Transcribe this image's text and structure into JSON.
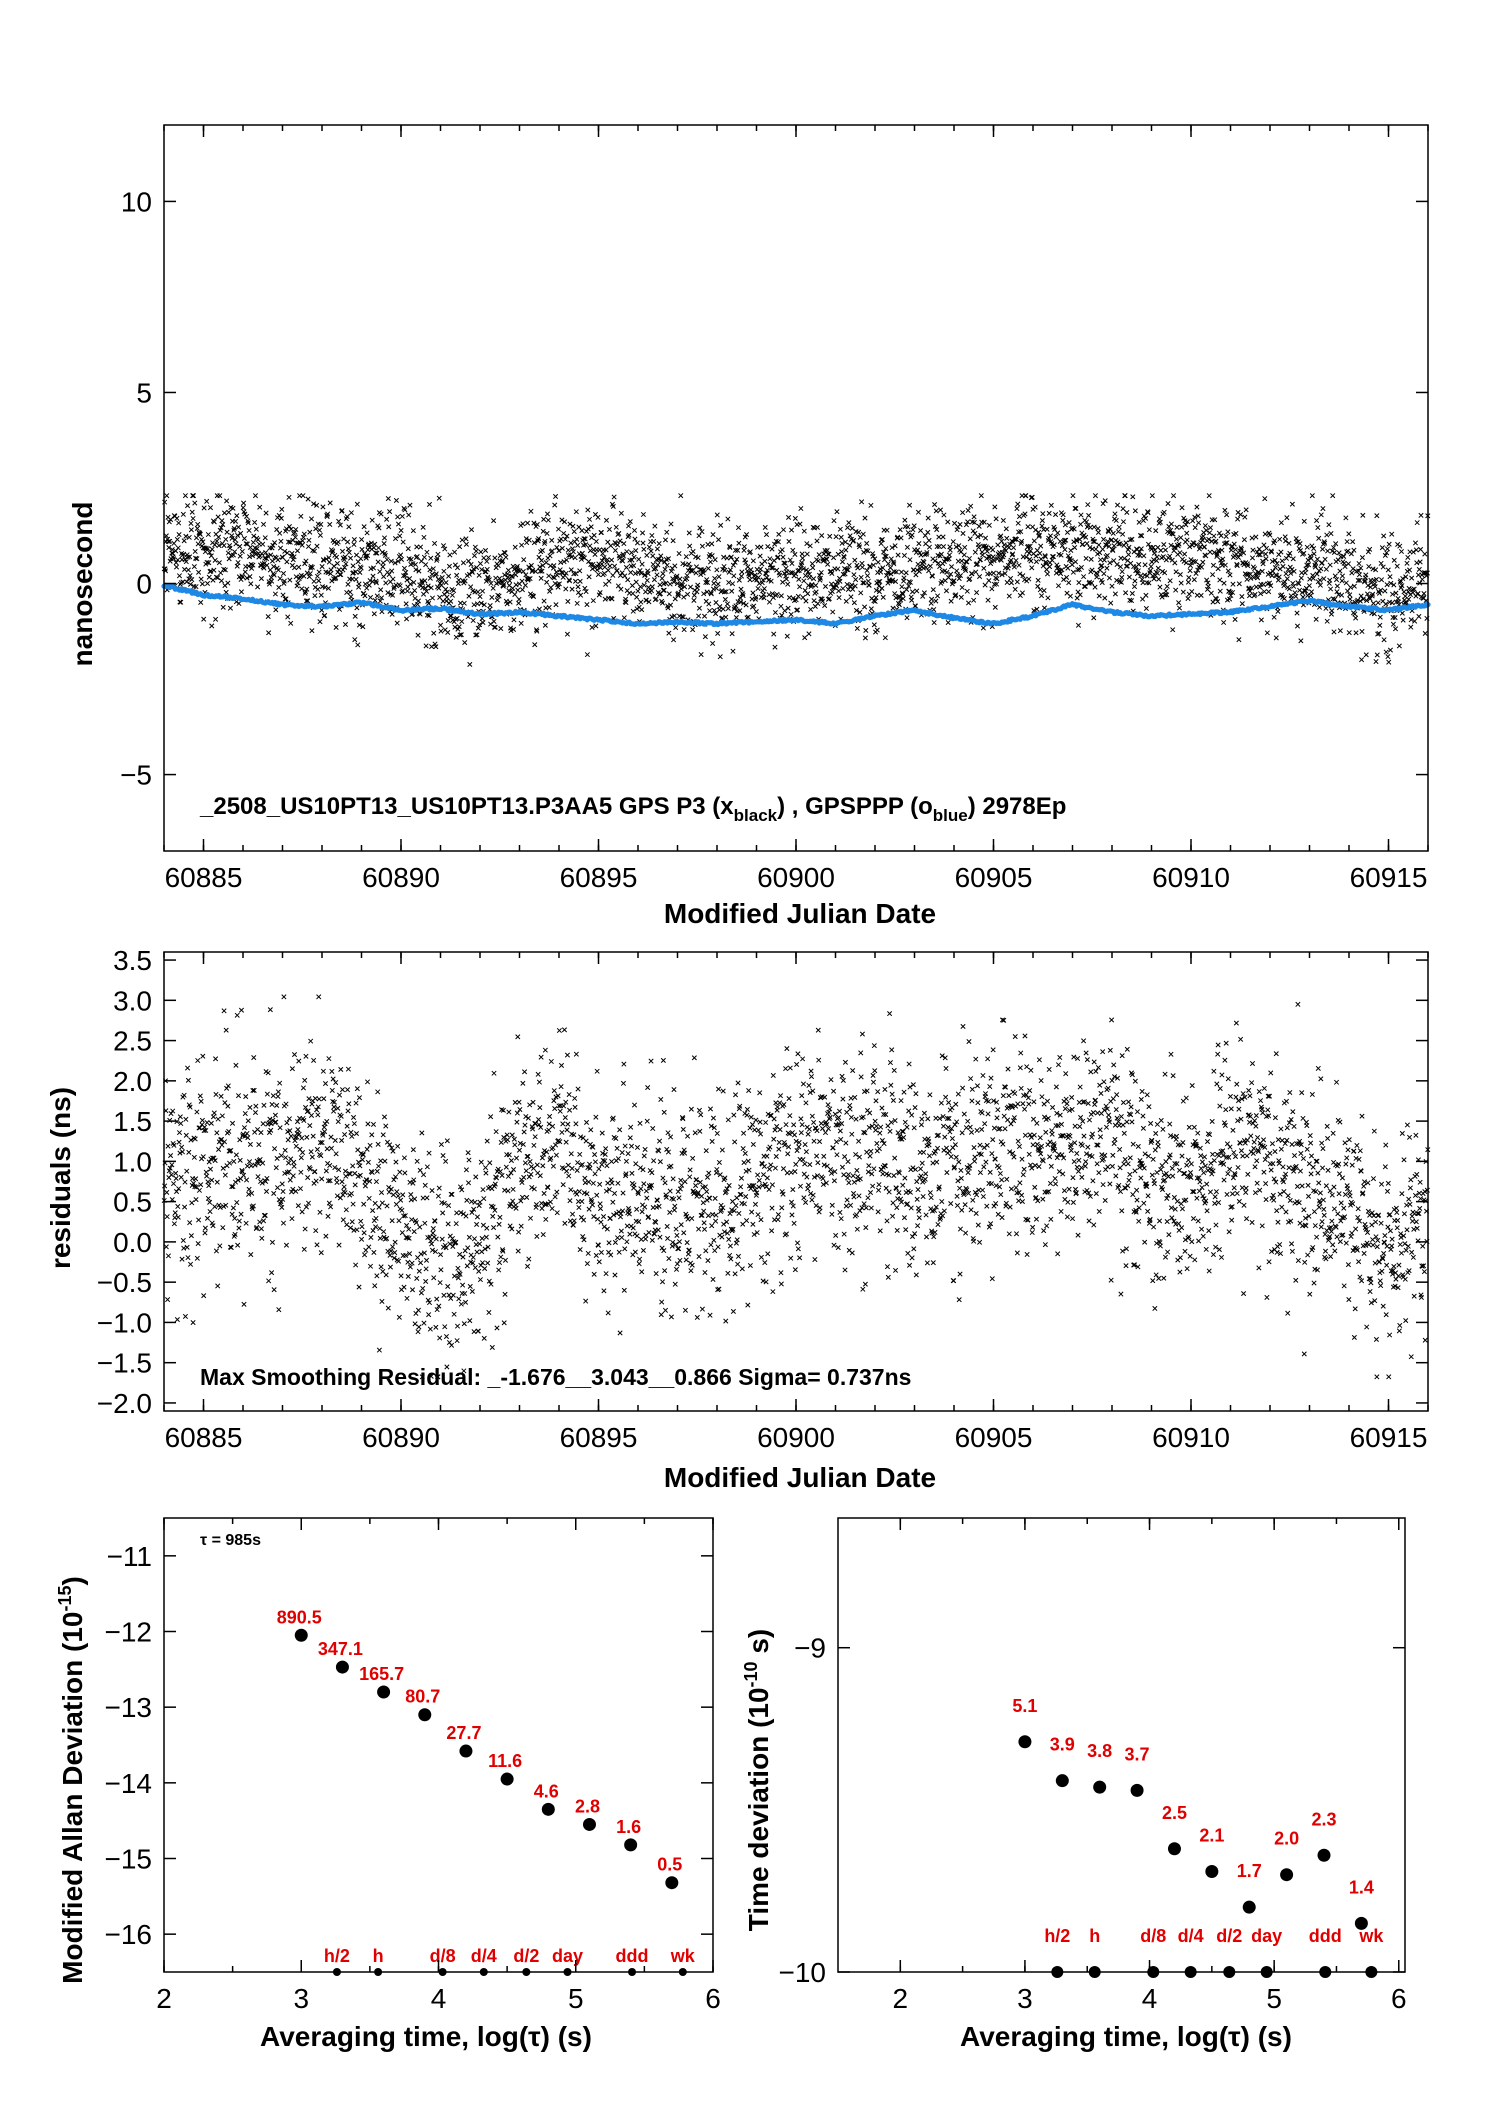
{
  "colors": {
    "black_series": "#000000",
    "blue_series": "#1e88e5",
    "red_labels": "#e00000"
  },
  "chart_data": [
    {
      "type": "scatter",
      "panel": "time_series",
      "xlabel": "Modified Julian Date",
      "ylabel": "nanosecond",
      "xlim": [
        60884,
        60916
      ],
      "ylim": [
        -7,
        12
      ],
      "xticks": [
        60885,
        60890,
        60895,
        60900,
        60905,
        60910,
        60915
      ],
      "yticks": [
        -5,
        0,
        5,
        10
      ],
      "annotation": {
        "prefix": "_2508_US10PT13_US10PT13.P3AA5     GPS P3 (x",
        "sub1": "black",
        "mid": ") ,  GPSPPP (o",
        "sub2": "blue",
        "suffix": ")  2978Ep"
      },
      "series": [
        {
          "name": "GPS P3",
          "marker": "x",
          "color": "#000000",
          "trend": [
            [
              60884,
              1.0
            ],
            [
              60887,
              0.7
            ],
            [
              60890,
              0.3
            ],
            [
              60892,
              -0.2
            ],
            [
              60894,
              0.7
            ],
            [
              60897,
              0.0
            ],
            [
              60900,
              0.2
            ],
            [
              60903,
              0.5
            ],
            [
              60905,
              0.7
            ],
            [
              60908,
              0.9
            ],
            [
              60911,
              0.6
            ],
            [
              60913,
              0.3
            ],
            [
              60915,
              -0.3
            ],
            [
              60916,
              0.0
            ]
          ],
          "spread_ns": 0.75,
          "count": 2978
        },
        {
          "name": "GPSPPP",
          "marker": "o",
          "color": "#1e88e5",
          "points": [
            [
              60884,
              -0.05
            ],
            [
              60885,
              -0.3
            ],
            [
              60886,
              -0.4
            ],
            [
              60887,
              -0.55
            ],
            [
              60888,
              -0.6
            ],
            [
              60889,
              -0.5
            ],
            [
              60890,
              -0.7
            ],
            [
              60891,
              -0.65
            ],
            [
              60892,
              -0.8
            ],
            [
              60893,
              -0.75
            ],
            [
              60894,
              -0.85
            ],
            [
              60895,
              -0.95
            ],
            [
              60896,
              -1.05
            ],
            [
              60897,
              -1.0
            ],
            [
              60898,
              -1.05
            ],
            [
              60899,
              -1.0
            ],
            [
              60900,
              -0.95
            ],
            [
              60901,
              -1.05
            ],
            [
              60902,
              -0.85
            ],
            [
              60903,
              -0.7
            ],
            [
              60904,
              -0.9
            ],
            [
              60905,
              -1.05
            ],
            [
              60906,
              -0.85
            ],
            [
              60907,
              -0.55
            ],
            [
              60908,
              -0.75
            ],
            [
              60909,
              -0.85
            ],
            [
              60910,
              -0.8
            ],
            [
              60911,
              -0.75
            ],
            [
              60912,
              -0.6
            ],
            [
              60913,
              -0.45
            ],
            [
              60914,
              -0.6
            ],
            [
              60915,
              -0.7
            ],
            [
              60916,
              -0.55
            ]
          ]
        }
      ]
    },
    {
      "type": "scatter",
      "panel": "residuals",
      "xlabel": "Modified Julian Date",
      "ylabel": "residuals (ns)",
      "xlim": [
        60884,
        60916
      ],
      "ylim": [
        -2.1,
        3.6
      ],
      "xticks": [
        60885,
        60890,
        60895,
        60900,
        60905,
        60910,
        60915
      ],
      "yticks": [
        -2.0,
        -1.5,
        -1.0,
        -0.5,
        0.0,
        0.5,
        1.0,
        1.5,
        2.0,
        2.5,
        3.0,
        3.5
      ],
      "annotation": "Max Smoothing Residual: _-1.676__3.043__0.866  Sigma= 0.737ns",
      "series": [
        {
          "name": "residuals",
          "marker": "x",
          "color": "#000000",
          "trend": [
            [
              60884,
              0.9
            ],
            [
              60886,
              0.9
            ],
            [
              60888,
              1.3
            ],
            [
              60889,
              0.8
            ],
            [
              60890,
              0.2
            ],
            [
              60891,
              -0.2
            ],
            [
              60892,
              0.1
            ],
            [
              60893,
              1.1
            ],
            [
              60894,
              1.2
            ],
            [
              60895,
              0.6
            ],
            [
              60897,
              0.4
            ],
            [
              60899,
              0.8
            ],
            [
              60900,
              1.1
            ],
            [
              60902,
              1.0
            ],
            [
              60903,
              0.8
            ],
            [
              60905,
              1.2
            ],
            [
              60906,
              1.1
            ],
            [
              60908,
              1.3
            ],
            [
              60909,
              0.9
            ],
            [
              60910,
              0.8
            ],
            [
              60911,
              1.1
            ],
            [
              60912,
              1.1
            ],
            [
              60913,
              0.7
            ],
            [
              60914,
              0.3
            ],
            [
              60915,
              0.0
            ],
            [
              60916,
              0.4
            ]
          ],
          "spread_ns": 0.65,
          "count": 2978,
          "extremes": {
            "min": -1.676,
            "max": 3.043,
            "mean": 0.866,
            "sigma": 0.737
          }
        }
      ]
    },
    {
      "type": "scatter",
      "panel": "mdev",
      "xlabel": "Averaging time, log(τ) (s)",
      "ylabel": "Modified Allan Deviation (10",
      "ylabel_sup": "-15",
      "ylabel_suffix": ")",
      "xlim": [
        2,
        6
      ],
      "ylim": [
        -16.5,
        -10.5
      ],
      "xticks": [
        2,
        3,
        4,
        5,
        6
      ],
      "yticks": [
        -16,
        -15,
        -14,
        -13,
        -12,
        -11
      ],
      "tau_note": "τ = 985s",
      "points": [
        {
          "x": 3.0,
          "y": -12.05,
          "label": "890.5"
        },
        {
          "x": 3.3,
          "y": -12.47,
          "label": "347.1"
        },
        {
          "x": 3.6,
          "y": -12.8,
          "label": "165.7"
        },
        {
          "x": 3.9,
          "y": -13.1,
          "label": "80.7"
        },
        {
          "x": 4.2,
          "y": -13.58,
          "label": "27.7"
        },
        {
          "x": 4.5,
          "y": -13.95,
          "label": "11.6"
        },
        {
          "x": 4.8,
          "y": -14.35,
          "label": "4.6"
        },
        {
          "x": 5.1,
          "y": -14.55,
          "label": "2.8"
        },
        {
          "x": 5.4,
          "y": -14.82,
          "label": "1.6"
        },
        {
          "x": 5.7,
          "y": -15.32,
          "label": "0.5"
        }
      ],
      "time_markers": [
        {
          "x": 3.26,
          "label": "h/2"
        },
        {
          "x": 3.56,
          "label": "h"
        },
        {
          "x": 4.03,
          "label": "d/8"
        },
        {
          "x": 4.33,
          "label": "d/4"
        },
        {
          "x": 4.64,
          "label": "d/2"
        },
        {
          "x": 4.94,
          "label": "day"
        },
        {
          "x": 5.41,
          "label": "ddd"
        },
        {
          "x": 5.78,
          "label": "wk"
        }
      ]
    },
    {
      "type": "scatter",
      "panel": "tdev",
      "xlabel": "Averaging time, log(τ) (s)",
      "ylabel": "Time deviation (10",
      "ylabel_sup": "-10",
      "ylabel_suffix": " s)",
      "xlim": [
        1.5,
        6.05
      ],
      "ylim": [
        -10,
        -8.6
      ],
      "xticks": [
        2,
        3,
        4,
        5,
        6
      ],
      "yticks": [
        -10,
        -9
      ],
      "points": [
        {
          "x": 3.0,
          "y": -9.29,
          "label": "5.1"
        },
        {
          "x": 3.3,
          "y": -9.41,
          "label": "3.9"
        },
        {
          "x": 3.6,
          "y": -9.43,
          "label": "3.8"
        },
        {
          "x": 3.9,
          "y": -9.44,
          "label": "3.7"
        },
        {
          "x": 4.2,
          "y": -9.62,
          "label": "2.5"
        },
        {
          "x": 4.5,
          "y": -9.69,
          "label": "2.1"
        },
        {
          "x": 4.8,
          "y": -9.8,
          "label": "1.7"
        },
        {
          "x": 5.1,
          "y": -9.7,
          "label": "2.0"
        },
        {
          "x": 5.4,
          "y": -9.64,
          "label": "2.3"
        },
        {
          "x": 5.7,
          "y": -9.85,
          "label": "1.4"
        }
      ],
      "time_markers": [
        {
          "x": 3.26,
          "label": "h/2"
        },
        {
          "x": 3.56,
          "label": "h"
        },
        {
          "x": 4.03,
          "label": "d/8"
        },
        {
          "x": 4.33,
          "label": "d/4"
        },
        {
          "x": 4.64,
          "label": "d/2"
        },
        {
          "x": 4.94,
          "label": "day"
        },
        {
          "x": 5.41,
          "label": "ddd"
        },
        {
          "x": 5.78,
          "label": "wk"
        }
      ]
    }
  ]
}
